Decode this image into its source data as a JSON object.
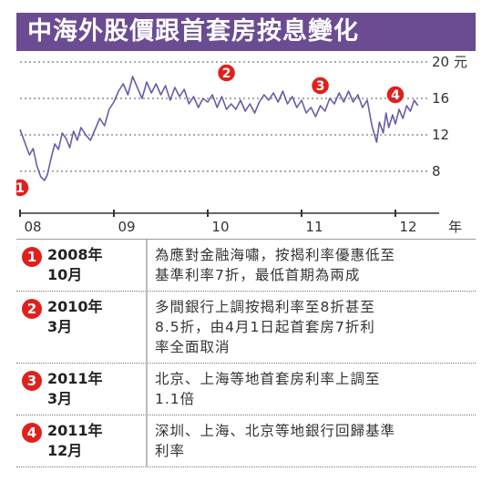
{
  "header": {
    "title": "中海外股價跟首套房按息變化"
  },
  "chart_data": {
    "type": "line",
    "title": "中海外股價跟首套房按息變化",
    "yunit": "元",
    "xunit": "年",
    "ylim": [
      4,
      20
    ],
    "yticks": [
      8,
      12,
      16,
      20
    ],
    "xticks": [
      {
        "label": "08",
        "x": 2008.0
      },
      {
        "label": "09",
        "x": 2009.0
      },
      {
        "label": "10",
        "x": 2010.0
      },
      {
        "label": "11",
        "x": 2011.0
      },
      {
        "label": "12",
        "x": 2012.0
      }
    ],
    "xlim": [
      2008.0,
      2012.35
    ],
    "series": [
      {
        "points": [
          [
            2008.0,
            12.6
          ],
          [
            2008.05,
            11.2
          ],
          [
            2008.1,
            9.8
          ],
          [
            2008.14,
            10.5
          ],
          [
            2008.18,
            8.6
          ],
          [
            2008.22,
            7.4
          ],
          [
            2008.26,
            7.0
          ],
          [
            2008.29,
            7.6
          ],
          [
            2008.33,
            9.4
          ],
          [
            2008.37,
            11.0
          ],
          [
            2008.41,
            10.4
          ],
          [
            2008.45,
            12.2
          ],
          [
            2008.49,
            11.6
          ],
          [
            2008.53,
            10.6
          ],
          [
            2008.57,
            12.4
          ],
          [
            2008.61,
            11.4
          ],
          [
            2008.65,
            12.8
          ],
          [
            2008.7,
            12.0
          ],
          [
            2008.75,
            11.4
          ],
          [
            2008.8,
            12.6
          ],
          [
            2008.85,
            13.8
          ],
          [
            2008.9,
            13.0
          ],
          [
            2008.95,
            14.8
          ],
          [
            2009.0,
            15.6
          ],
          [
            2009.05,
            16.8
          ],
          [
            2009.1,
            17.6
          ],
          [
            2009.15,
            16.4
          ],
          [
            2009.2,
            18.4
          ],
          [
            2009.25,
            17.2
          ],
          [
            2009.3,
            16.0
          ],
          [
            2009.35,
            17.8
          ],
          [
            2009.4,
            16.6
          ],
          [
            2009.45,
            17.6
          ],
          [
            2009.5,
            16.4
          ],
          [
            2009.55,
            17.4
          ],
          [
            2009.6,
            15.8
          ],
          [
            2009.65,
            17.2
          ],
          [
            2009.7,
            16.2
          ],
          [
            2009.75,
            17.0
          ],
          [
            2009.8,
            15.4
          ],
          [
            2009.85,
            16.2
          ],
          [
            2009.9,
            15.0
          ],
          [
            2009.95,
            16.0
          ],
          [
            2010.0,
            15.6
          ],
          [
            2010.05,
            16.4
          ],
          [
            2010.1,
            15.0
          ],
          [
            2010.15,
            16.2
          ],
          [
            2010.2,
            14.8
          ],
          [
            2010.25,
            15.4
          ],
          [
            2010.3,
            14.8
          ],
          [
            2010.35,
            15.8
          ],
          [
            2010.4,
            14.6
          ],
          [
            2010.45,
            15.4
          ],
          [
            2010.5,
            14.4
          ],
          [
            2010.55,
            15.6
          ],
          [
            2010.6,
            16.4
          ],
          [
            2010.65,
            15.8
          ],
          [
            2010.7,
            16.6
          ],
          [
            2010.75,
            15.6
          ],
          [
            2010.8,
            16.8
          ],
          [
            2010.85,
            15.4
          ],
          [
            2010.9,
            16.2
          ],
          [
            2010.95,
            15.0
          ],
          [
            2011.0,
            15.8
          ],
          [
            2011.05,
            14.4
          ],
          [
            2011.1,
            15.0
          ],
          [
            2011.15,
            14.0
          ],
          [
            2011.2,
            15.2
          ],
          [
            2011.25,
            14.6
          ],
          [
            2011.3,
            16.0
          ],
          [
            2011.35,
            15.4
          ],
          [
            2011.4,
            16.6
          ],
          [
            2011.45,
            15.6
          ],
          [
            2011.5,
            16.8
          ],
          [
            2011.55,
            15.6
          ],
          [
            2011.6,
            16.4
          ],
          [
            2011.65,
            15.0
          ],
          [
            2011.7,
            15.8
          ],
          [
            2011.75,
            13.0
          ],
          [
            2011.8,
            11.2
          ],
          [
            2011.83,
            13.4
          ],
          [
            2011.87,
            12.2
          ],
          [
            2011.9,
            14.4
          ],
          [
            2011.93,
            12.8
          ],
          [
            2011.97,
            14.2
          ],
          [
            2012.0,
            13.2
          ],
          [
            2012.04,
            14.8
          ],
          [
            2012.08,
            13.8
          ],
          [
            2012.12,
            15.2
          ],
          [
            2012.16,
            14.6
          ],
          [
            2012.2,
            15.8
          ],
          [
            2012.24,
            15.2
          ]
        ]
      }
    ],
    "markers": [
      {
        "label": "1",
        "x": 2008.0,
        "y": 6.2
      },
      {
        "label": "2",
        "x": 2010.2,
        "y": 18.8
      },
      {
        "label": "3",
        "x": 2011.2,
        "y": 17.4
      },
      {
        "label": "4",
        "x": 2012.0,
        "y": 16.4
      }
    ],
    "colors": {
      "line": "#6b5ba8",
      "marker": "#e0201c",
      "grid": "#555555"
    }
  },
  "notes": [
    {
      "badge": "1",
      "date": "2008年\n10月",
      "text": "為應對金融海嘯，按揭利率優惠低至\n基準利率7折，最低首期為兩成"
    },
    {
      "badge": "2",
      "date": "2010年\n3月",
      "text": "多間銀行上調按揭利率至8折甚至\n8.5折，由4月1日起首套房7折利\n率全面取消"
    },
    {
      "badge": "3",
      "date": "2011年\n3月",
      "text": "北京、上海等地首套房利率上調至\n1.1倍"
    },
    {
      "badge": "4",
      "date": "2011年\n12月",
      "text": "深圳、上海、北京等地銀行回歸基準\n利率"
    }
  ]
}
